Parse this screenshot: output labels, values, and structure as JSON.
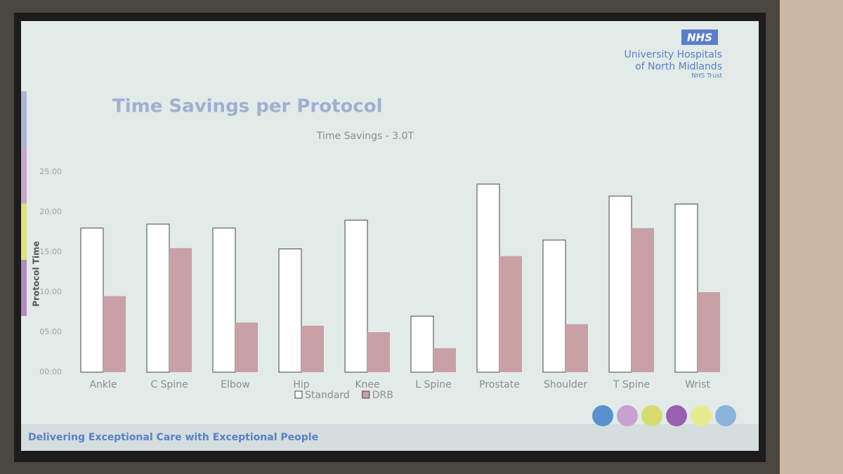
{
  "slide_title": "Time Savings per Protocol",
  "logo": {
    "badge": "NHS",
    "line1": "University Hospitals",
    "line2": "of North Midlands",
    "trust": "NHS Trust"
  },
  "footer": "Delivering Exceptional Care with Exceptional People",
  "chart_data": {
    "type": "bar",
    "title": "Time Savings - 3.0T",
    "y_label": "Protocol Time",
    "categories": [
      "Ankle",
      "C Spine",
      "Elbow",
      "Hip",
      "Knee",
      "L Spine",
      "Prostate",
      "Shoulder",
      "T Spine",
      "Wrist"
    ],
    "series": [
      {
        "name": "Standard",
        "color": "#ffffff",
        "values": [
          18,
          18.5,
          18,
          15.4,
          19,
          7,
          23.5,
          16.5,
          22,
          21
        ]
      },
      {
        "name": "DRB",
        "color": "#c9a0a6",
        "values": [
          9.5,
          15.5,
          6.2,
          5.8,
          5,
          3,
          14.5,
          6,
          18,
          10
        ]
      }
    ],
    "ylim": [
      0,
      25
    ],
    "yticks": [
      {
        "value": 0,
        "label": "00:00"
      },
      {
        "value": 5,
        "label": "05:00"
      },
      {
        "value": 10,
        "label": "10:00"
      },
      {
        "value": 15,
        "label": "15:00"
      },
      {
        "value": 20,
        "label": "20:00"
      },
      {
        "value": 25,
        "label": "25:00"
      }
    ],
    "grid": false,
    "legend": "bottom"
  }
}
